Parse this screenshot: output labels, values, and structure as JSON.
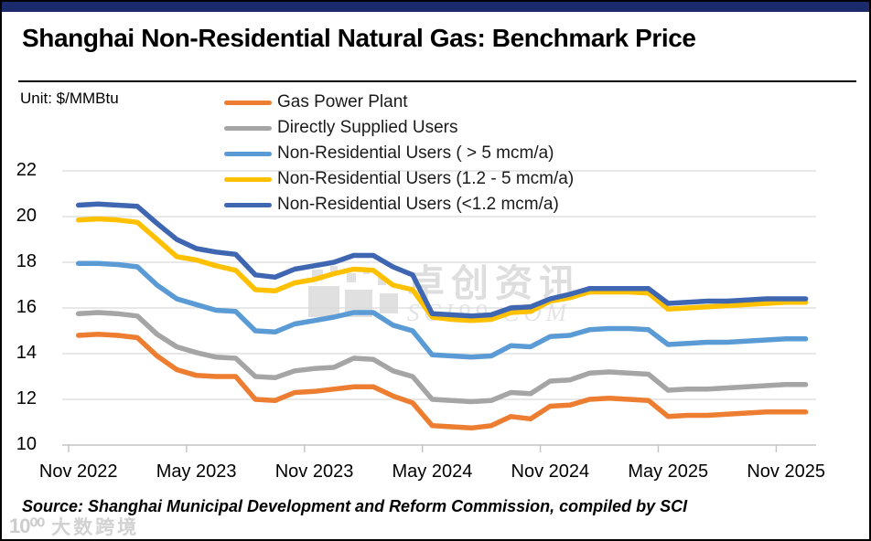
{
  "header": {
    "title": "Shanghai Non-Residential Natural Gas: Benchmark Price",
    "unit_label": "Unit: $/MMBtu",
    "topbar_color": "#1b2a6b"
  },
  "source": {
    "text": "Source: Shanghai Municipal Development and Reform Commission, compiled by SCI"
  },
  "watermarks": {
    "center_cn": "卓创资讯",
    "center_site": "SCI99.COM",
    "bottom_left_icon": "10⁰⁰",
    "bottom_left_text": "大数跨境"
  },
  "chart_data": {
    "type": "line",
    "x": [
      "Nov 2022",
      "Dec 2022",
      "Jan 2023",
      "Feb 2023",
      "Mar 2023",
      "Apr 2023",
      "May 2023",
      "Jun 2023",
      "Jul 2023",
      "Aug 2023",
      "Sep 2023",
      "Oct 2023",
      "Nov 2023",
      "Dec 2023",
      "Jan 2024",
      "Feb 2024",
      "Mar 2024",
      "Apr 2024",
      "May 2024",
      "Jun 2024",
      "Jul 2024",
      "Aug 2024",
      "Sep 2024",
      "Oct 2024",
      "Nov 2024",
      "Dec 2024",
      "Jan 2025",
      "Feb 2025",
      "Mar 2025",
      "Apr 2025",
      "May 2025",
      "Jun 2025",
      "Jul 2025",
      "Aug 2025",
      "Sep 2025",
      "Oct 2025",
      "Nov 2025",
      "Dec 2025"
    ],
    "x_tick_labels": [
      "Nov 2022",
      "May 2023",
      "Nov 2023",
      "May 2024",
      "Nov 2024",
      "May 2025",
      "Nov 2025"
    ],
    "yticks": [
      22,
      20,
      18,
      16,
      14,
      12,
      10
    ],
    "ylim": [
      10,
      22
    ],
    "ylabel": "$/MMBtu",
    "grid": "horizontal",
    "legend_position": "top-left-column",
    "series": [
      {
        "name": "Gas Power Plant",
        "color": "#ED7D31",
        "values": [
          14.8,
          14.85,
          14.8,
          14.7,
          13.9,
          13.3,
          13.05,
          13.0,
          13.0,
          12.0,
          11.95,
          12.3,
          12.35,
          12.45,
          12.55,
          12.55,
          12.15,
          11.85,
          10.85,
          10.8,
          10.75,
          10.85,
          11.25,
          11.15,
          11.7,
          11.75,
          12.0,
          12.05,
          12.0,
          11.95,
          11.25,
          11.3,
          11.3,
          11.35,
          11.4,
          11.45,
          11.45,
          11.45
        ]
      },
      {
        "name": "Directly Supplied Users",
        "color": "#A5A5A5",
        "values": [
          15.75,
          15.8,
          15.75,
          15.65,
          14.85,
          14.3,
          14.05,
          13.85,
          13.8,
          13.0,
          12.95,
          13.25,
          13.35,
          13.4,
          13.8,
          13.75,
          13.25,
          13.0,
          12.0,
          11.95,
          11.9,
          11.95,
          12.3,
          12.25,
          12.8,
          12.85,
          13.15,
          13.2,
          13.15,
          13.1,
          12.4,
          12.45,
          12.45,
          12.5,
          12.55,
          12.6,
          12.65,
          12.65
        ]
      },
      {
        "name": "Non-Residential Users ( > 5 mcm/a)",
        "color": "#5B9BD5",
        "values": [
          17.95,
          17.95,
          17.9,
          17.8,
          17.0,
          16.4,
          16.15,
          15.9,
          15.85,
          15.0,
          14.95,
          15.3,
          15.45,
          15.6,
          15.8,
          15.8,
          15.25,
          15.0,
          13.95,
          13.9,
          13.85,
          13.9,
          14.35,
          14.3,
          14.75,
          14.8,
          15.05,
          15.1,
          15.1,
          15.05,
          14.4,
          14.45,
          14.5,
          14.5,
          14.55,
          14.6,
          14.65,
          14.65
        ]
      },
      {
        "name": "Non-Residential Users (1.2 - 5 mcm/a)",
        "color": "#FFC000",
        "values": [
          19.85,
          19.9,
          19.85,
          19.75,
          19.0,
          18.25,
          18.1,
          17.85,
          17.65,
          16.8,
          16.75,
          17.1,
          17.25,
          17.5,
          17.7,
          17.65,
          17.0,
          16.8,
          15.6,
          15.5,
          15.45,
          15.5,
          15.8,
          15.85,
          16.3,
          16.45,
          16.7,
          16.7,
          16.7,
          16.65,
          15.95,
          16.0,
          16.05,
          16.1,
          16.15,
          16.2,
          16.25,
          16.25
        ]
      },
      {
        "name": "Non-Residential Users (<1.2 mcm/a)",
        "color": "#3F66B1",
        "values": [
          20.5,
          20.55,
          20.5,
          20.45,
          19.7,
          19.0,
          18.6,
          18.45,
          18.35,
          17.45,
          17.35,
          17.7,
          17.85,
          18.0,
          18.3,
          18.3,
          17.8,
          17.45,
          15.75,
          15.7,
          15.65,
          15.7,
          16.0,
          16.05,
          16.4,
          16.6,
          16.85,
          16.85,
          16.85,
          16.85,
          16.2,
          16.25,
          16.3,
          16.3,
          16.35,
          16.4,
          16.4,
          16.4
        ]
      }
    ]
  }
}
